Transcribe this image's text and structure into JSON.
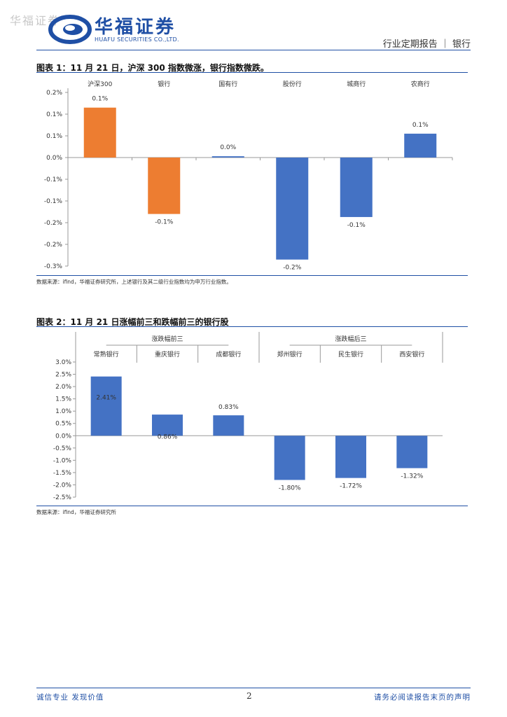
{
  "header": {
    "watermark": "华福证券",
    "brand_cn": "华福证券",
    "brand_en": "HUAFU SECURITIES CO.,LTD.",
    "report_type": "行业定期报告 ｜ 银行"
  },
  "figure1": {
    "title": "图表 1：11 月 21 日，沪深 300 指数微涨，银行指数微跌。",
    "source": "数据来源：ifind，华福证券研究所，上述银行及其二级行业指数均为申万行业指数。"
  },
  "figure2": {
    "title": "图表 2：11 月 21 日涨幅前三和跌幅前三的银行股",
    "source": "数据来源：ifind，华福证券研究所"
  },
  "chart_data": [
    {
      "type": "bar",
      "title": "",
      "categories": [
        "沪深300",
        "银行",
        "国有行",
        "股份行",
        "城商行",
        "农商行"
      ],
      "values": [
        0.115,
        -0.13,
        0.003,
        -0.235,
        -0.137,
        0.055
      ],
      "data_labels": [
        "0.1%",
        "-0.1%",
        "0.0%",
        "-0.2%",
        "-0.1%",
        "0.1%"
      ],
      "colors": [
        "#ED7D31",
        "#ED7D31",
        "#4472C4",
        "#4472C4",
        "#4472C4",
        "#4472C4"
      ],
      "ylim": [
        -0.25,
        0.15
      ],
      "yticks": [
        0.15,
        0.1,
        0.05,
        0,
        -0.05,
        -0.1,
        -0.15,
        -0.2,
        -0.25
      ],
      "ytick_labels": [
        "0.2%",
        "0.1%",
        "0.1%",
        "0.0%",
        "-0.1%",
        "-0.1%",
        "-0.2%",
        "-0.2%",
        "-0.3%"
      ],
      "xlabel": "",
      "ylabel": "",
      "grid": false,
      "legend": "none"
    },
    {
      "type": "bar",
      "title": "",
      "groups": [
        {
          "label": "涨跌幅前三",
          "categories": [
            "常熟银行",
            "重庆银行",
            "成都银行"
          ]
        },
        {
          "label": "涨跌幅后三",
          "categories": [
            "郑州银行",
            "民生银行",
            "西安银行"
          ]
        }
      ],
      "categories": [
        "常熟银行",
        "重庆银行",
        "成都银行",
        "郑州银行",
        "民生银行",
        "西安银行"
      ],
      "values": [
        2.41,
        0.86,
        0.83,
        -1.8,
        -1.72,
        -1.32
      ],
      "data_labels": [
        "2.41%",
        "0.86%",
        "0.83%",
        "-1.80%",
        "-1.72%",
        "-1.32%"
      ],
      "colors": [
        "#4472C4",
        "#4472C4",
        "#4472C4",
        "#4472C4",
        "#4472C4",
        "#4472C4"
      ],
      "ylim": [
        -2.5,
        3.0
      ],
      "yticks": [
        3.0,
        2.5,
        2.0,
        1.5,
        1.0,
        0.5,
        0,
        -0.5,
        -1.0,
        -1.5,
        -2.0,
        -2.5
      ],
      "ytick_labels": [
        "3.0%",
        "2.5%",
        "2.0%",
        "1.5%",
        "1.0%",
        "0.5%",
        "0.0%",
        "-0.5%",
        "-1.0%",
        "-1.5%",
        "-2.0%",
        "-2.5%"
      ],
      "xlabel": "",
      "ylabel": "",
      "grid": false,
      "legend": "none"
    }
  ],
  "footer": {
    "left": "诚信专业 发现价值",
    "page": "2",
    "right": "请务必阅读报告末页的声明"
  }
}
